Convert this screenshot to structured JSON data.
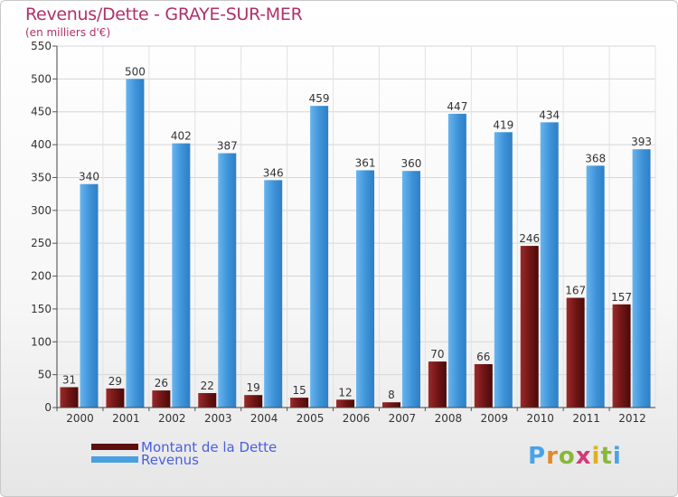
{
  "chart_data": {
    "type": "bar",
    "title": "Revenus/Dette - GRAYE-SUR-MER",
    "subtitle": "(en milliers d'€)",
    "categories": [
      "2000",
      "2001",
      "2002",
      "2003",
      "2004",
      "2005",
      "2006",
      "2007",
      "2008",
      "2009",
      "2010",
      "2011",
      "2012"
    ],
    "series": [
      {
        "name": "Montant de la Dette",
        "color": "#7a1a1a",
        "values": [
          31,
          29,
          26,
          22,
          19,
          15,
          12,
          8,
          70,
          66,
          246,
          167,
          157
        ]
      },
      {
        "name": "Revenus",
        "color": "#4a9fe0",
        "values": [
          340,
          500,
          402,
          387,
          346,
          459,
          361,
          360,
          447,
          419,
          434,
          368,
          393
        ]
      }
    ],
    "ylim": [
      0,
      550
    ],
    "yticks": [
      0,
      50,
      100,
      150,
      200,
      250,
      300,
      350,
      400,
      450,
      500,
      550
    ],
    "grid": true,
    "legend": "bottom-left"
  },
  "logo": {
    "text": "Proxiti",
    "letters": [
      "P",
      "r",
      "o",
      "x",
      "i",
      "t",
      "i"
    ]
  }
}
